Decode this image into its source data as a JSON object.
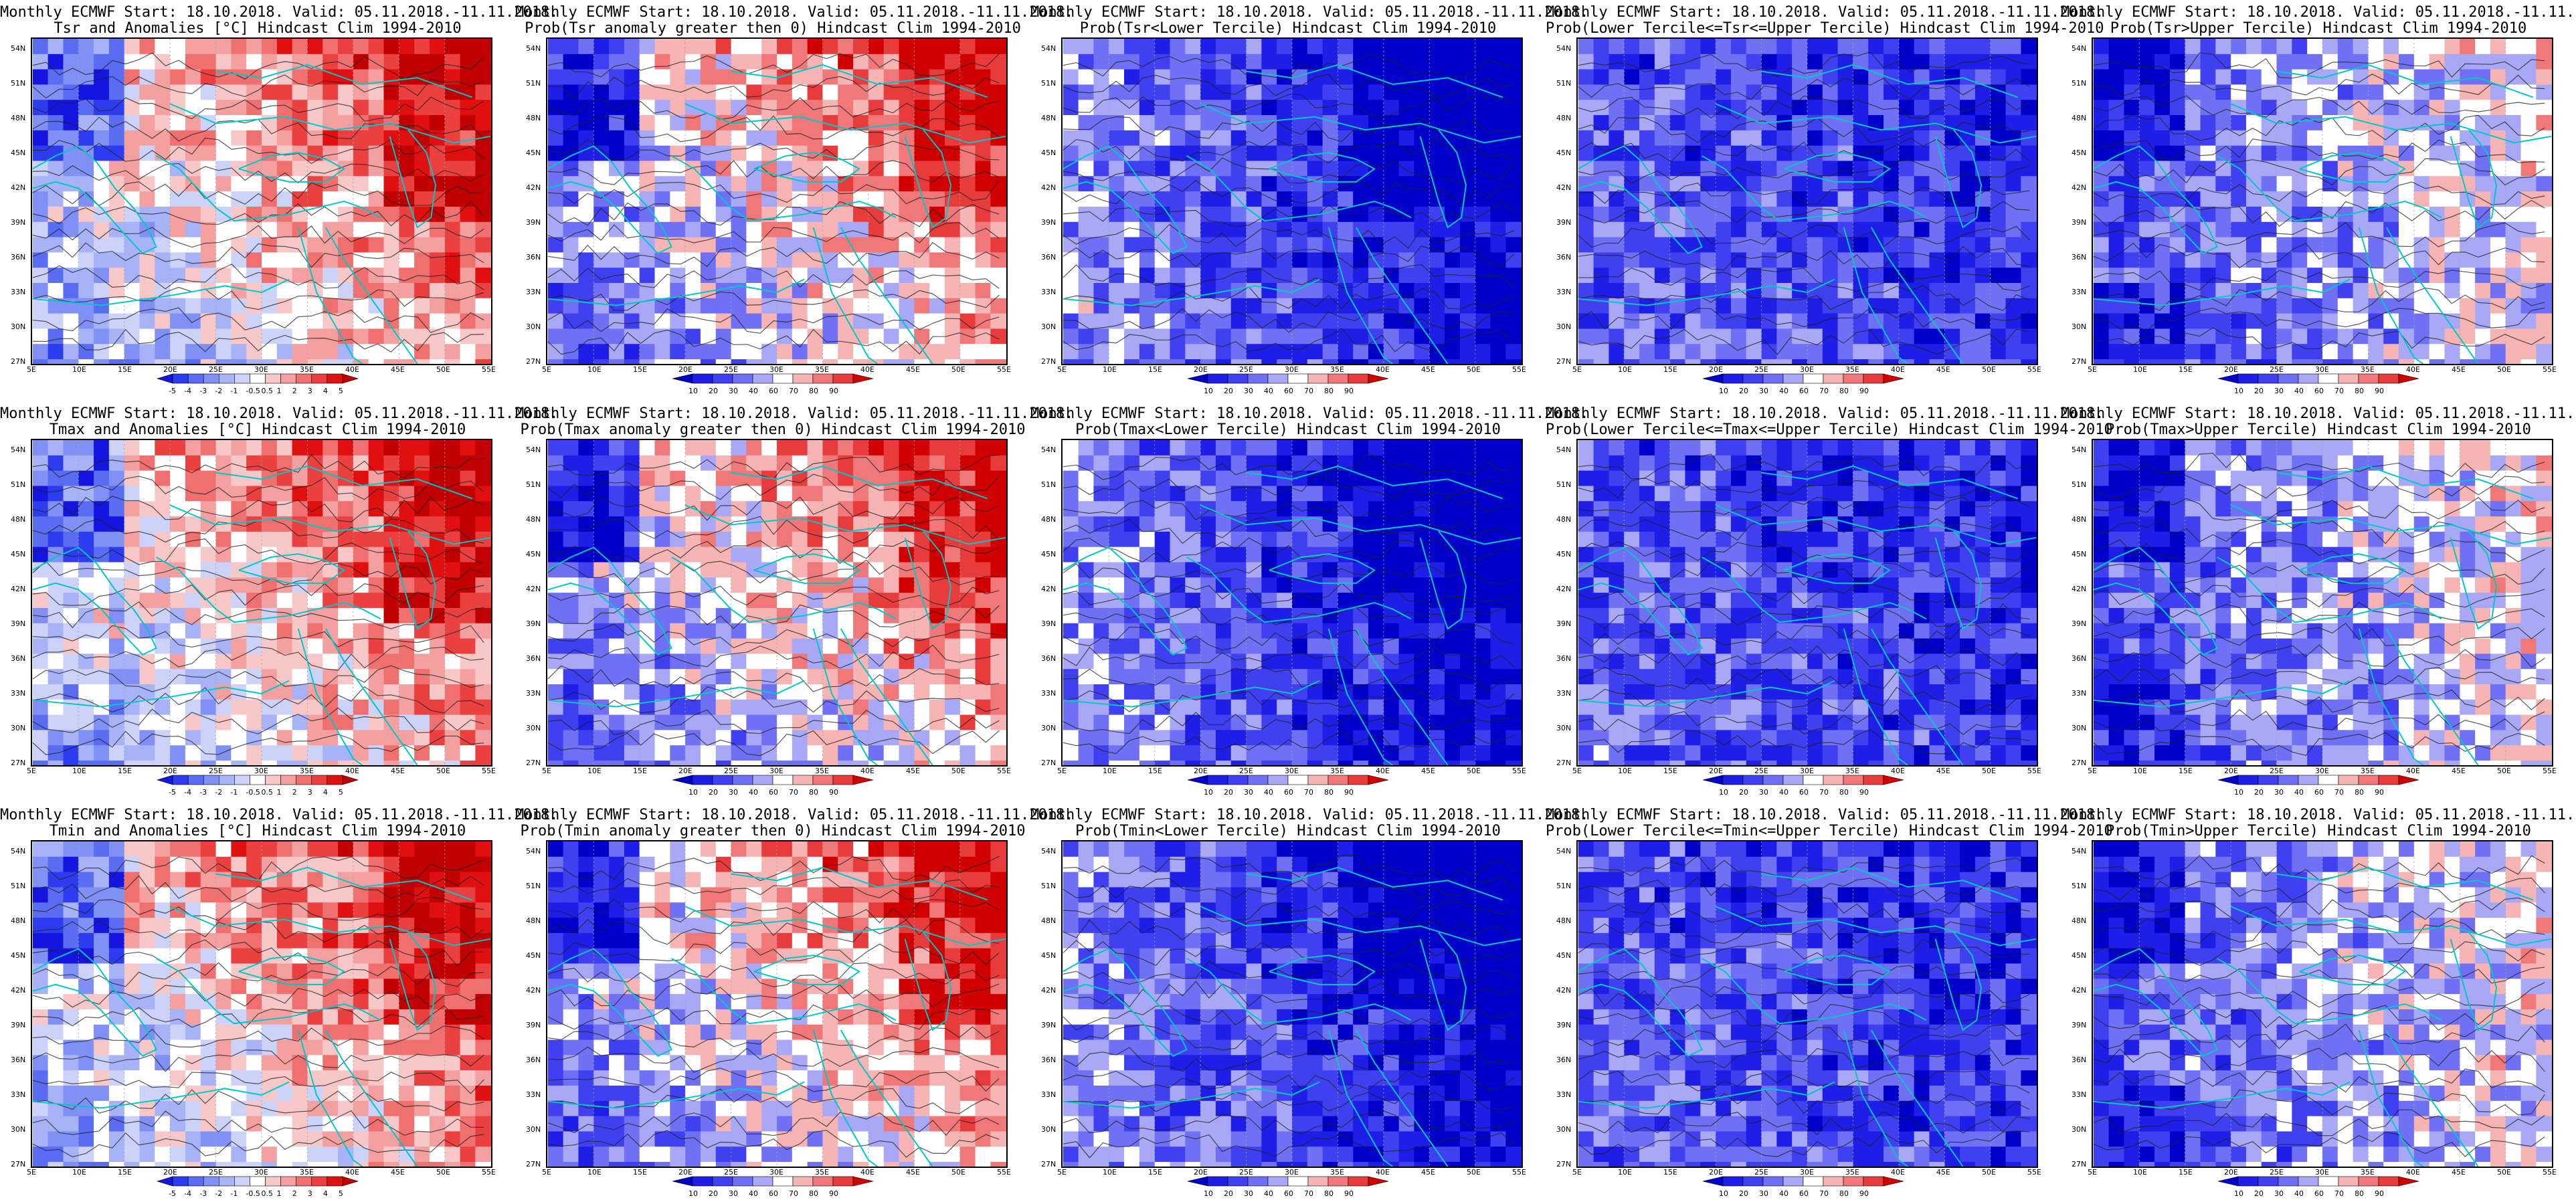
{
  "title_line1": "Monthly ECMWF Start: 18.10.2018. Valid: 05.11.2018.-11.11.2018.",
  "lat_labels": [
    "54N",
    "51N",
    "48N",
    "45N",
    "42N",
    "39N",
    "36N",
    "33N",
    "30N",
    "27N"
  ],
  "lon_labels": [
    "5E",
    "10E",
    "15E",
    "20E",
    "25E",
    "30E",
    "35E",
    "40E",
    "45E",
    "50E",
    "55E"
  ],
  "colorbars": {
    "anomaly": {
      "ticks": [
        "-5",
        "-4",
        "-3",
        "-2",
        "-1",
        "-0.5",
        "0.5",
        "1",
        "2",
        "3",
        "4",
        "5"
      ],
      "colors": [
        "#1515e0",
        "#2e3cf0",
        "#5a6cf2",
        "#8090f4",
        "#a8b2f6",
        "#ccd2f8",
        "#ffffff",
        "#f8c8c8",
        "#f4a0a0",
        "#f07070",
        "#ea4040",
        "#e01010",
        "#c00000"
      ]
    },
    "prob": {
      "ticks": [
        "10",
        "20",
        "30",
        "40",
        "60",
        "70",
        "80",
        "90"
      ],
      "colors": [
        "#0000c8",
        "#1e1ee6",
        "#4040f0",
        "#7070f4",
        "#a8a8f6",
        "#ffffff",
        "#f6b4b4",
        "#f07878",
        "#e83c3c",
        "#d00000"
      ]
    }
  },
  "panels": [
    {
      "id": "tsr-anom",
      "line2": "Tsr and Anomalies [°C] Hindcast Clim 1994-2010",
      "palette": "anomaly",
      "base": "warm"
    },
    {
      "id": "tsr-prob-pos",
      "line2": "Prob(Tsr anomaly greater then 0) Hindcast Clim 1994-2010",
      "palette": "prob",
      "base": "warm"
    },
    {
      "id": "tsr-prob-lower",
      "line2": "Prob(Tsr<Lower Tercile) Hindcast Clim 1994-2010",
      "palette": "prob",
      "base": "cold-east"
    },
    {
      "id": "tsr-prob-middle",
      "line2": "Prob(Lower Tercile<=Tsr<=Upper Tercile) Hindcast Clim 1994-2010",
      "palette": "prob",
      "base": "cold-mix"
    },
    {
      "id": "tsr-prob-upper",
      "line2": "Prob(Tsr>Upper Tercile) Hindcast Clim 1994-2010",
      "palette": "prob",
      "base": "cold-west"
    },
    {
      "id": "tmax-anom",
      "line2": "Tmax and Anomalies [°C] Hindcast Clim 1994-2010",
      "palette": "anomaly",
      "base": "warm"
    },
    {
      "id": "tmax-prob-pos",
      "line2": "Prob(Tmax anomaly greater then 0) Hindcast Clim 1994-2010",
      "palette": "prob",
      "base": "warm"
    },
    {
      "id": "tmax-prob-lower",
      "line2": "Prob(Tmax<Lower Tercile) Hindcast Clim 1994-2010",
      "palette": "prob",
      "base": "cold-east"
    },
    {
      "id": "tmax-prob-middle",
      "line2": "Prob(Lower Tercile<=Tmax<=Upper Tercile) Hindcast Clim 1994-2010",
      "palette": "prob",
      "base": "cold-mix"
    },
    {
      "id": "tmax-prob-upper",
      "line2": "Prob(Tmax>Upper Tercile) Hindcast Clim 1994-2010",
      "palette": "prob",
      "base": "cold-west"
    },
    {
      "id": "tmin-anom",
      "line2": "Tmin and Anomalies [°C] Hindcast Clim 1994-2010",
      "palette": "anomaly",
      "base": "warm"
    },
    {
      "id": "tmin-prob-pos",
      "line2": "Prob(Tmin anomaly greater then 0) Hindcast Clim 1994-2010",
      "palette": "prob",
      "base": "warm"
    },
    {
      "id": "tmin-prob-lower",
      "line2": "Prob(Tmin<Lower Tercile) Hindcast Clim 1994-2010",
      "palette": "prob",
      "base": "cold-east"
    },
    {
      "id": "tmin-prob-middle",
      "line2": "Prob(Lower Tercile<=Tmin<=Upper Tercile) Hindcast Clim 1994-2010",
      "palette": "prob",
      "base": "cold-mix"
    },
    {
      "id": "tmin-prob-upper",
      "line2": "Prob(Tmin>Upper Tercile) Hindcast Clim 1994-2010",
      "palette": "prob",
      "base": "cold-west"
    }
  ],
  "style": {
    "coast_color": "#00c8c8",
    "contour_color": "#202020"
  }
}
